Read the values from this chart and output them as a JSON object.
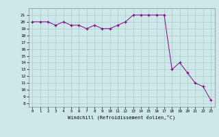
{
  "x": [
    0,
    1,
    2,
    3,
    4,
    5,
    6,
    7,
    8,
    9,
    10,
    11,
    12,
    13,
    14,
    15,
    16,
    17,
    18,
    19,
    20,
    21,
    22,
    23
  ],
  "y": [
    20,
    20,
    20,
    19.5,
    20,
    19.5,
    19.5,
    19.0,
    19.5,
    19.0,
    19.0,
    19.5,
    20.0,
    21.0,
    21.0,
    21.0,
    21.0,
    21.0,
    13.0,
    14.0,
    12.5,
    11.0,
    10.5,
    8.5
  ],
  "background_color": "#cce8e8",
  "grid_color": "#aacccc",
  "line_color": "#880088",
  "marker_color": "#880088",
  "xlabel": "Windchill (Refroidissement éolien,°C)",
  "ylabel_ticks": [
    8,
    9,
    10,
    11,
    12,
    13,
    14,
    15,
    16,
    17,
    18,
    19,
    20,
    21
  ],
  "ylim": [
    7.5,
    22.0
  ],
  "xlim": [
    -0.5,
    23.5
  ],
  "xtick_labels": [
    "0",
    "1",
    "2",
    "3",
    "4",
    "5",
    "6",
    "7",
    "8",
    "9",
    "10",
    "11",
    "12",
    "13",
    "14",
    "15",
    "16",
    "17",
    "18",
    "19",
    "20",
    "21",
    "22",
    "23"
  ]
}
